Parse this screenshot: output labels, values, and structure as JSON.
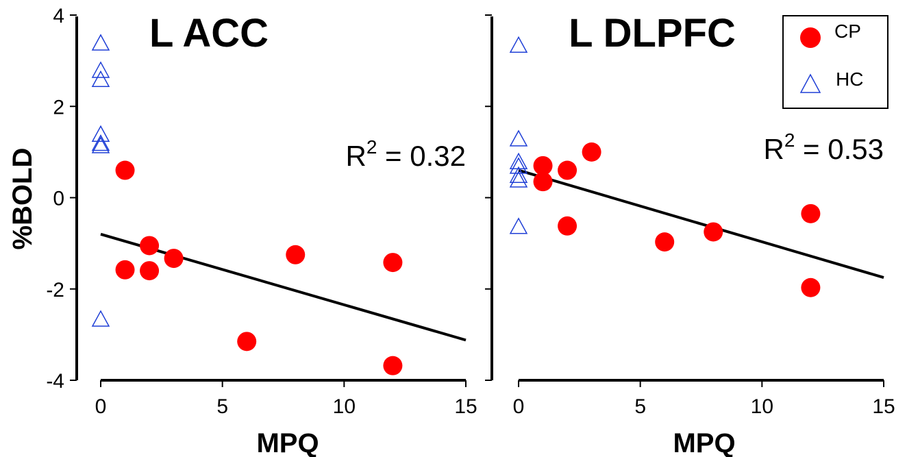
{
  "chart_data": [
    {
      "type": "scatter",
      "title": "L ACC",
      "xlabel": "MPQ",
      "ylabel": "%BOLD",
      "xlim": [
        0,
        15
      ],
      "ylim": [
        -4,
        4
      ],
      "x_ticks": [
        "0",
        "5",
        "10",
        "15"
      ],
      "y_ticks": [
        "4",
        "2",
        "0",
        "-2",
        "-4"
      ],
      "annotation": {
        "prefix": "R",
        "sup": "2",
        "suffix": " = 0.32"
      },
      "series": [
        {
          "name": "CP",
          "marker": "circle",
          "color": "#ff0000",
          "points": [
            [
              1,
              0.6
            ],
            [
              1,
              -1.58
            ],
            [
              2,
              -1.05
            ],
            [
              2,
              -1.6
            ],
            [
              3,
              -1.33
            ],
            [
              6,
              -3.15
            ],
            [
              8,
              -1.25
            ],
            [
              12,
              -1.42
            ],
            [
              12,
              -3.68
            ]
          ]
        },
        {
          "name": "HC",
          "marker": "triangle",
          "color": "#1f3fd6",
          "points": [
            [
              0,
              3.4
            ],
            [
              0,
              2.8
            ],
            [
              0,
              2.6
            ],
            [
              0,
              1.4
            ],
            [
              0,
              1.2
            ],
            [
              0,
              1.15
            ],
            [
              0,
              -2.65
            ]
          ]
        }
      ],
      "fit_line": [
        [
          0,
          -0.8
        ],
        [
          15,
          -3.12
        ]
      ]
    },
    {
      "type": "scatter",
      "title": "L DLPFC",
      "xlabel": "MPQ",
      "ylabel": "",
      "xlim": [
        0,
        15
      ],
      "ylim": [
        -4,
        4
      ],
      "x_ticks": [
        "0",
        "5",
        "10",
        "15"
      ],
      "annotation": {
        "prefix": "R",
        "sup": "2",
        "suffix": " = 0.53"
      },
      "series": [
        {
          "name": "CP",
          "marker": "circle",
          "color": "#ff0000",
          "points": [
            [
              1,
              0.7
            ],
            [
              1,
              0.35
            ],
            [
              2,
              0.6
            ],
            [
              2,
              -0.62
            ],
            [
              3,
              1.0
            ],
            [
              6,
              -0.97
            ],
            [
              8,
              -0.75
            ],
            [
              12,
              -0.35
            ],
            [
              12,
              -1.97
            ]
          ]
        },
        {
          "name": "HC",
          "marker": "triangle",
          "color": "#1f3fd6",
          "points": [
            [
              0,
              3.35
            ],
            [
              0,
              1.3
            ],
            [
              0,
              0.8
            ],
            [
              0,
              0.7
            ],
            [
              0,
              0.5
            ],
            [
              0,
              0.4
            ],
            [
              0,
              -0.62
            ]
          ]
        }
      ],
      "fit_line": [
        [
          0,
          0.6
        ],
        [
          15,
          -1.75
        ]
      ]
    }
  ],
  "legend": {
    "position": "top-right",
    "items": [
      {
        "label": "CP",
        "marker": "circle",
        "color": "#ff0000"
      },
      {
        "label": "HC",
        "marker": "triangle",
        "color": "#1f3fd6"
      }
    ]
  }
}
